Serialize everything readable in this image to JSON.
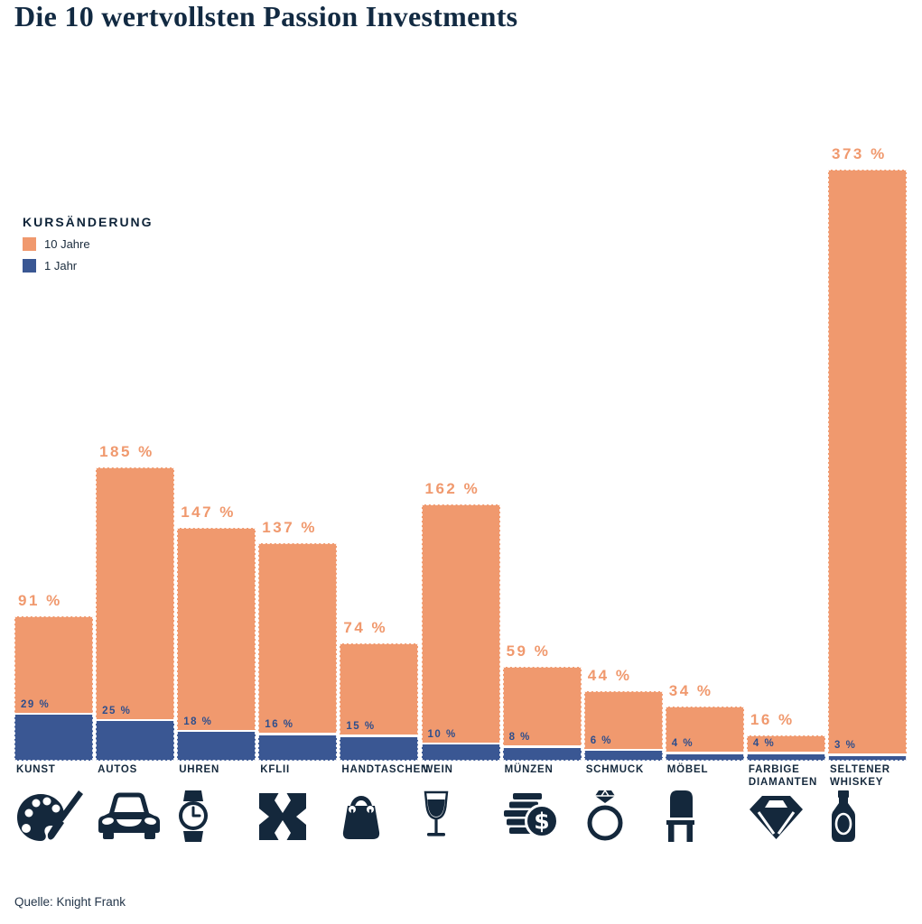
{
  "title": "Die 10 wertvollsten Passion Investments",
  "legend": {
    "heading": "KURSÄNDERUNG",
    "items": [
      {
        "label": "10 Jahre",
        "color": "#F0996E"
      },
      {
        "label": "1 Jahr",
        "color": "#3A5793"
      }
    ]
  },
  "source": "Quelle: Knight Frank",
  "colors": {
    "background": "#FFFFFF",
    "orange": "#F0996E",
    "blue": "#3A5793",
    "blue_label": "#2E4E8C",
    "navy": "#14283C",
    "title": "#122A42"
  },
  "chart_data": {
    "type": "bar",
    "title": "Die 10 wertvollsten Passion Investments",
    "xlabel": "",
    "ylabel": "Kursänderung",
    "unit": "%",
    "ylim": [
      0,
      400
    ],
    "grid": false,
    "legend_position": "left",
    "categories": [
      "KUNST",
      "AUTOS",
      "UHREN",
      "KFLII",
      "HANDTASCHEN",
      "WEIN",
      "MÜNZEN",
      "SCHMUCK",
      "MÖBEL",
      "FARBIGE\nDIAMANTEN",
      "SELTENER\nWHISKEY"
    ],
    "series": [
      {
        "name": "10 Jahre",
        "color": "#F0996E",
        "values": [
          91,
          185,
          147,
          137,
          74,
          162,
          59,
          44,
          34,
          16,
          373
        ]
      },
      {
        "name": "1 Jahr",
        "color": "#3A5793",
        "values": [
          29,
          25,
          18,
          16,
          15,
          10,
          8,
          6,
          4,
          4,
          3
        ]
      }
    ],
    "value_label_format": "{v} %",
    "icons": [
      "palette-icon",
      "car-icon",
      "watch-icon",
      "knight-frank-logo-icon",
      "handbag-icon",
      "wine-glass-icon",
      "coins-icon",
      "ring-icon",
      "chair-icon",
      "diamond-icon",
      "whiskey-bottle-icon"
    ]
  }
}
